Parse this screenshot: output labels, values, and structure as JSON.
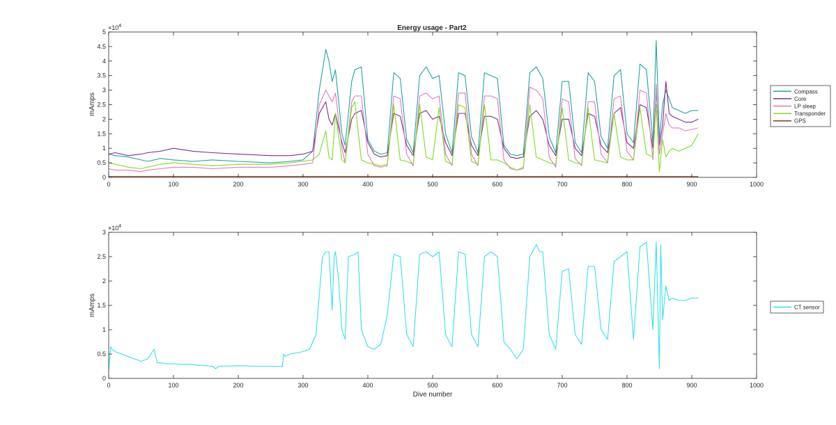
{
  "figure": {
    "top_chart": {
      "title": "Energy usage - Part2",
      "ylabel": "mAmps",
      "exponent_base": "×10",
      "exponent_power": "4",
      "xlim": [
        0,
        1000
      ],
      "ylim": [
        0,
        50000
      ],
      "x_ticks": [
        "0",
        "100",
        "200",
        "300",
        "400",
        "500",
        "600",
        "700",
        "800",
        "900",
        "1000"
      ],
      "y_ticks": [
        "0",
        "0.5",
        "1",
        "1.5",
        "2",
        "2.5",
        "3",
        "3.5",
        "4",
        "4.5",
        "5"
      ],
      "legend_location": "outside-right",
      "legend_entries": [
        "Compass",
        "Core",
        "LP sleep",
        "Transponder",
        "GPS"
      ]
    },
    "bottom_chart": {
      "xlabel": "Dive number",
      "ylabel": "mAmps",
      "exponent_base": "×10",
      "exponent_power": "4",
      "xlim": [
        0,
        1000
      ],
      "ylim": [
        0,
        30000
      ],
      "x_ticks": [
        "0",
        "100",
        "200",
        "300",
        "400",
        "500",
        "600",
        "700",
        "800",
        "900",
        "1000"
      ],
      "y_ticks": [
        "0",
        "0.5",
        "1",
        "1.5",
        "2",
        "2.5",
        "3"
      ],
      "legend_location": "outside-right",
      "legend_entries": [
        "CT sensor"
      ]
    }
  },
  "chart_data": [
    {
      "type": "line",
      "title": "Energy usage - Part2",
      "xlabel": "",
      "ylabel": "mAmps",
      "xlim": [
        0,
        1000
      ],
      "ylim": [
        0,
        50000
      ],
      "grid": false,
      "legend": "outside-right",
      "series": [
        {
          "name": "Compass",
          "color": "#1fa5a0",
          "x": [
            0,
            10,
            30,
            50,
            60,
            80,
            100,
            130,
            160,
            200,
            250,
            280,
            300,
            315,
            325,
            335,
            340,
            345,
            350,
            360,
            365,
            375,
            380,
            390,
            400,
            410,
            420,
            430,
            440,
            450,
            460,
            470,
            480,
            490,
            500,
            510,
            520,
            530,
            540,
            550,
            560,
            570,
            580,
            590,
            600,
            610,
            620,
            630,
            640,
            650,
            660,
            670,
            680,
            690,
            700,
            710,
            720,
            730,
            740,
            750,
            760,
            770,
            780,
            790,
            800,
            810,
            820,
            830,
            840,
            845,
            850,
            855,
            860,
            865,
            870,
            880,
            890,
            900,
            910
          ],
          "y": [
            8000,
            7500,
            7000,
            6000,
            5500,
            6500,
            6000,
            5500,
            6000,
            5500,
            5000,
            5500,
            6000,
            9000,
            30000,
            44000,
            40000,
            33000,
            37000,
            15000,
            11000,
            33000,
            37000,
            38000,
            13000,
            9000,
            8000,
            8500,
            36000,
            34000,
            13000,
            8500,
            35000,
            38000,
            34000,
            35000,
            15000,
            8500,
            36000,
            35000,
            14000,
            8500,
            36000,
            35000,
            34000,
            11000,
            8000,
            7500,
            8000,
            36000,
            38000,
            34000,
            14000,
            8500,
            33000,
            33000,
            12000,
            8500,
            36000,
            33000,
            14000,
            10000,
            35000,
            37000,
            15000,
            12000,
            39000,
            37000,
            12000,
            47000,
            13000,
            25000,
            30000,
            27000,
            24000,
            23000,
            22000,
            23000,
            23000
          ]
        },
        {
          "name": "Core",
          "color": "#7e2f8e",
          "x": [
            0,
            10,
            30,
            50,
            60,
            80,
            100,
            130,
            160,
            200,
            250,
            280,
            300,
            315,
            325,
            335,
            340,
            345,
            350,
            360,
            365,
            375,
            380,
            390,
            400,
            410,
            420,
            430,
            440,
            450,
            460,
            470,
            480,
            490,
            500,
            510,
            520,
            530,
            540,
            550,
            560,
            570,
            580,
            590,
            600,
            610,
            620,
            630,
            640,
            650,
            660,
            670,
            680,
            690,
            700,
            710,
            720,
            730,
            740,
            750,
            760,
            770,
            780,
            790,
            800,
            810,
            820,
            830,
            840,
            845,
            850,
            855,
            860,
            865,
            870,
            880,
            890,
            900,
            910
          ],
          "y": [
            8000,
            8500,
            7500,
            8000,
            8500,
            9000,
            10000,
            9000,
            8500,
            8000,
            7500,
            7500,
            8000,
            9000,
            22000,
            26000,
            20000,
            18000,
            22000,
            12000,
            8500,
            20000,
            22000,
            23000,
            12000,
            8000,
            7000,
            7500,
            22000,
            21000,
            11000,
            7500,
            22000,
            23000,
            20000,
            21000,
            12000,
            7500,
            22000,
            22000,
            11000,
            7500,
            21000,
            21000,
            20000,
            10000,
            7000,
            6500,
            7000,
            21000,
            23000,
            20000,
            11000,
            7500,
            20000,
            20000,
            10000,
            7500,
            22000,
            21000,
            11000,
            8500,
            22000,
            24000,
            12000,
            10000,
            25000,
            24000,
            10000,
            30000,
            11000,
            18000,
            33000,
            22000,
            21000,
            20000,
            19000,
            19000,
            20000
          ]
        },
        {
          "name": "LP sleep",
          "color": "#e377c2",
          "x": [
            0,
            10,
            30,
            50,
            60,
            80,
            100,
            130,
            160,
            200,
            250,
            280,
            300,
            315,
            325,
            335,
            340,
            345,
            350,
            360,
            365,
            375,
            380,
            390,
            400,
            410,
            420,
            430,
            440,
            450,
            460,
            470,
            480,
            490,
            500,
            510,
            520,
            530,
            540,
            550,
            560,
            570,
            580,
            590,
            600,
            610,
            620,
            630,
            640,
            650,
            660,
            670,
            680,
            690,
            700,
            710,
            720,
            730,
            740,
            750,
            760,
            770,
            780,
            790,
            800,
            810,
            820,
            830,
            840,
            845,
            850,
            855,
            860,
            865,
            870,
            880,
            890,
            900,
            910
          ],
          "y": [
            3000,
            2500,
            2500,
            2000,
            2500,
            3000,
            3500,
            3500,
            3000,
            3500,
            3500,
            4000,
            4500,
            5000,
            25000,
            30000,
            28000,
            26000,
            29000,
            10000,
            5000,
            26000,
            28000,
            28000,
            8000,
            4000,
            3500,
            4000,
            28000,
            27000,
            8000,
            4000,
            28000,
            29000,
            27000,
            28000,
            8000,
            4000,
            29000,
            29000,
            8000,
            4000,
            28000,
            28000,
            27000,
            6000,
            3000,
            2500,
            3000,
            31000,
            30000,
            27000,
            7000,
            3500,
            27000,
            26000,
            6500,
            4000,
            26000,
            26000,
            8000,
            5000,
            27000,
            28000,
            9000,
            6000,
            30000,
            29000,
            6000,
            32000,
            8000,
            15000,
            22000,
            18000,
            17000,
            17000,
            16000,
            16500,
            17000
          ]
        },
        {
          "name": "Transponder",
          "color": "#7fdc1f",
          "x": [
            0,
            10,
            30,
            50,
            60,
            80,
            100,
            130,
            160,
            200,
            250,
            280,
            300,
            315,
            325,
            335,
            340,
            345,
            350,
            360,
            365,
            375,
            380,
            390,
            400,
            410,
            420,
            430,
            440,
            450,
            460,
            470,
            480,
            490,
            500,
            510,
            520,
            530,
            540,
            550,
            560,
            570,
            580,
            590,
            600,
            610,
            620,
            630,
            640,
            650,
            660,
            670,
            680,
            690,
            700,
            710,
            720,
            730,
            740,
            750,
            760,
            770,
            780,
            790,
            800,
            810,
            820,
            830,
            840,
            845,
            850,
            855,
            860,
            865,
            870,
            880,
            890,
            900,
            910
          ],
          "y": [
            5000,
            4500,
            3500,
            3000,
            3500,
            4500,
            5000,
            4500,
            4000,
            4500,
            4500,
            5000,
            5500,
            6000,
            8000,
            16000,
            7000,
            6000,
            22000,
            6000,
            5000,
            24000,
            26000,
            6000,
            5000,
            4500,
            4000,
            4500,
            25000,
            6000,
            5500,
            4500,
            25000,
            7000,
            6000,
            24000,
            5500,
            4500,
            25000,
            24000,
            5500,
            4500,
            25000,
            6000,
            6000,
            5000,
            3500,
            2500,
            3500,
            25000,
            7000,
            6000,
            5000,
            4500,
            24000,
            6000,
            5000,
            4500,
            24000,
            6000,
            5500,
            5000,
            22000,
            7000,
            6000,
            6000,
            24000,
            8000,
            7000,
            25000,
            2000,
            13000,
            7000,
            9000,
            10000,
            9000,
            10000,
            11000,
            15000
          ]
        },
        {
          "name": "GPS",
          "color": "#8b3a1a",
          "x": [
            0,
            100,
            200,
            300,
            400,
            500,
            600,
            700,
            800,
            910
          ],
          "y": [
            300,
            300,
            300,
            300,
            300,
            300,
            300,
            300,
            300,
            300
          ]
        }
      ]
    },
    {
      "type": "line",
      "title": "",
      "xlabel": "Dive number",
      "ylabel": "mAmps",
      "xlim": [
        0,
        1000
      ],
      "ylim": [
        0,
        30000
      ],
      "grid": false,
      "legend": "outside-right",
      "series": [
        {
          "name": "CT sensor",
          "color": "#33e0ef",
          "x": [
            0,
            3,
            5,
            10,
            30,
            50,
            60,
            70,
            75,
            80,
            90,
            100,
            130,
            160,
            165,
            170,
            200,
            230,
            260,
            268,
            270,
            272,
            280,
            300,
            310,
            320,
            330,
            335,
            340,
            345,
            348,
            350,
            355,
            360,
            365,
            370,
            380,
            385,
            390,
            400,
            410,
            420,
            430,
            440,
            450,
            460,
            470,
            480,
            490,
            500,
            510,
            520,
            530,
            540,
            550,
            560,
            570,
            580,
            590,
            600,
            610,
            620,
            630,
            640,
            650,
            660,
            665,
            670,
            680,
            690,
            700,
            710,
            720,
            730,
            740,
            750,
            760,
            770,
            780,
            790,
            800,
            810,
            820,
            830,
            840,
            845,
            850,
            852,
            855,
            860,
            865,
            870,
            880,
            890,
            900,
            910
          ],
          "y": [
            1500,
            6500,
            6000,
            5500,
            4500,
            3500,
            4000,
            6000,
            3200,
            3200,
            3000,
            3000,
            2800,
            2500,
            2000,
            2500,
            2600,
            2500,
            2500,
            2400,
            5000,
            4500,
            5000,
            5500,
            6000,
            9000,
            25000,
            26000,
            26000,
            14000,
            25000,
            26000,
            20000,
            10000,
            8000,
            25000,
            25500,
            26000,
            10000,
            6500,
            6000,
            7000,
            13000,
            25500,
            25000,
            9000,
            6500,
            25500,
            26000,
            25000,
            26000,
            9000,
            6500,
            26000,
            25500,
            9000,
            6500,
            25000,
            26000,
            25000,
            7500,
            6000,
            4000,
            6000,
            25000,
            27500,
            26000,
            26000,
            9000,
            6000,
            22000,
            22500,
            9000,
            7000,
            23000,
            23000,
            10000,
            8000,
            24000,
            25000,
            26000,
            8000,
            27000,
            28000,
            10000,
            28000,
            2000,
            27500,
            12000,
            19000,
            16000,
            16500,
            16000,
            16000,
            16500,
            16500
          ]
        }
      ]
    }
  ]
}
